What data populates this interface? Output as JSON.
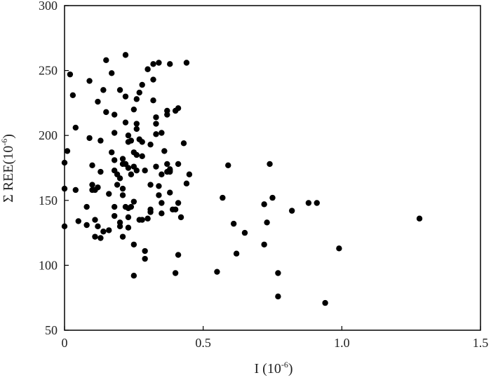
{
  "chart_data": {
    "type": "scatter",
    "xlabel": {
      "main": "I",
      "unit_open": " (10",
      "unit_sup": "-6",
      "unit_close": ")"
    },
    "ylabel": {
      "main": "Σ REE",
      "unit_open": "(10",
      "unit_sup": "-6",
      "unit_close": ")"
    },
    "xlim": [
      0,
      1.5
    ],
    "ylim": [
      50,
      300
    ],
    "xticks": [
      "0",
      "0.5",
      "1.0",
      "1.5"
    ],
    "yticks": [
      "50",
      "100",
      "150",
      "200",
      "250",
      "300"
    ],
    "grid": false,
    "marker_color": "#000000",
    "points": [
      [
        0.0,
        130
      ],
      [
        0.0,
        159
      ],
      [
        0.0,
        179
      ],
      [
        0.01,
        188
      ],
      [
        0.02,
        247
      ],
      [
        0.03,
        231
      ],
      [
        0.04,
        206
      ],
      [
        0.04,
        158
      ],
      [
        0.05,
        134
      ],
      [
        0.08,
        145
      ],
      [
        0.08,
        131
      ],
      [
        0.09,
        198
      ],
      [
        0.09,
        242
      ],
      [
        0.1,
        162
      ],
      [
        0.1,
        158
      ],
      [
        0.1,
        177
      ],
      [
        0.11,
        158
      ],
      [
        0.11,
        135
      ],
      [
        0.11,
        122
      ],
      [
        0.12,
        226
      ],
      [
        0.12,
        130
      ],
      [
        0.12,
        160
      ],
      [
        0.13,
        172
      ],
      [
        0.13,
        121
      ],
      [
        0.13,
        196
      ],
      [
        0.14,
        235
      ],
      [
        0.14,
        126
      ],
      [
        0.15,
        258
      ],
      [
        0.15,
        218
      ],
      [
        0.16,
        127
      ],
      [
        0.16,
        155
      ],
      [
        0.17,
        187
      ],
      [
        0.17,
        248
      ],
      [
        0.18,
        202
      ],
      [
        0.18,
        216
      ],
      [
        0.18,
        181
      ],
      [
        0.18,
        173
      ],
      [
        0.18,
        145
      ],
      [
        0.18,
        138
      ],
      [
        0.19,
        170
      ],
      [
        0.19,
        162
      ],
      [
        0.2,
        130
      ],
      [
        0.2,
        167
      ],
      [
        0.2,
        133
      ],
      [
        0.2,
        235
      ],
      [
        0.21,
        154
      ],
      [
        0.21,
        122
      ],
      [
        0.21,
        178
      ],
      [
        0.21,
        182
      ],
      [
        0.21,
        159
      ],
      [
        0.22,
        262
      ],
      [
        0.22,
        230
      ],
      [
        0.22,
        210
      ],
      [
        0.22,
        178
      ],
      [
        0.22,
        145
      ],
      [
        0.22,
        178
      ],
      [
        0.23,
        175
      ],
      [
        0.23,
        200
      ],
      [
        0.23,
        195
      ],
      [
        0.23,
        144
      ],
      [
        0.23,
        137
      ],
      [
        0.23,
        129
      ],
      [
        0.24,
        196
      ],
      [
        0.24,
        170
      ],
      [
        0.24,
        145
      ],
      [
        0.25,
        220
      ],
      [
        0.25,
        187
      ],
      [
        0.25,
        149
      ],
      [
        0.25,
        116
      ],
      [
        0.25,
        92
      ],
      [
        0.25,
        176
      ],
      [
        0.26,
        228
      ],
      [
        0.26,
        209
      ],
      [
        0.26,
        173
      ],
      [
        0.26,
        205
      ],
      [
        0.26,
        185
      ],
      [
        0.27,
        233
      ],
      [
        0.27,
        197
      ],
      [
        0.27,
        135
      ],
      [
        0.28,
        239
      ],
      [
        0.28,
        195
      ],
      [
        0.28,
        184
      ],
      [
        0.28,
        135
      ],
      [
        0.29,
        173
      ],
      [
        0.29,
        105
      ],
      [
        0.29,
        111
      ],
      [
        0.3,
        251
      ],
      [
        0.3,
        136
      ],
      [
        0.31,
        193
      ],
      [
        0.31,
        162
      ],
      [
        0.31,
        143
      ],
      [
        0.31,
        141
      ],
      [
        0.32,
        227
      ],
      [
        0.32,
        255
      ],
      [
        0.32,
        243
      ],
      [
        0.33,
        209
      ],
      [
        0.33,
        201
      ],
      [
        0.33,
        214
      ],
      [
        0.33,
        176
      ],
      [
        0.34,
        256
      ],
      [
        0.34,
        161
      ],
      [
        0.34,
        154
      ],
      [
        0.35,
        170
      ],
      [
        0.35,
        148
      ],
      [
        0.35,
        140
      ],
      [
        0.35,
        202
      ],
      [
        0.36,
        188
      ],
      [
        0.37,
        178
      ],
      [
        0.37,
        172
      ],
      [
        0.37,
        219
      ],
      [
        0.37,
        216
      ],
      [
        0.38,
        255
      ],
      [
        0.38,
        172
      ],
      [
        0.38,
        156
      ],
      [
        0.38,
        174
      ],
      [
        0.38,
        173
      ],
      [
        0.39,
        143
      ],
      [
        0.4,
        94
      ],
      [
        0.4,
        219
      ],
      [
        0.4,
        143
      ],
      [
        0.41,
        221
      ],
      [
        0.41,
        148
      ],
      [
        0.41,
        178
      ],
      [
        0.41,
        108
      ],
      [
        0.42,
        137
      ],
      [
        0.43,
        194
      ],
      [
        0.44,
        256
      ],
      [
        0.44,
        163
      ],
      [
        0.45,
        170
      ],
      [
        0.55,
        95
      ],
      [
        0.57,
        152
      ],
      [
        0.59,
        177
      ],
      [
        0.61,
        132
      ],
      [
        0.62,
        109
      ],
      [
        0.65,
        125
      ],
      [
        0.72,
        147
      ],
      [
        0.72,
        116
      ],
      [
        0.73,
        133
      ],
      [
        0.74,
        178
      ],
      [
        0.75,
        152
      ],
      [
        0.77,
        94
      ],
      [
        0.77,
        76
      ],
      [
        0.82,
        142
      ],
      [
        0.88,
        148
      ],
      [
        0.91,
        148
      ],
      [
        0.94,
        71
      ],
      [
        0.99,
        113
      ],
      [
        1.28,
        136
      ]
    ]
  }
}
